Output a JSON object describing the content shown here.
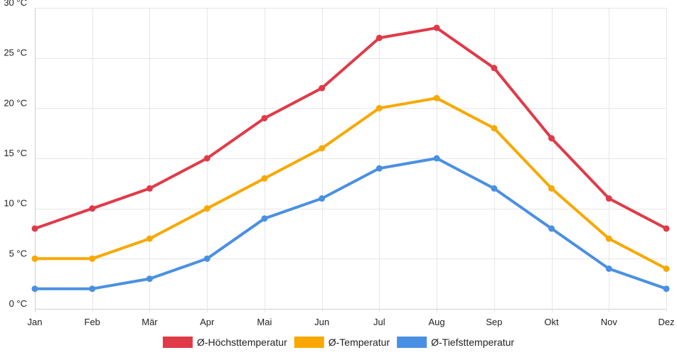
{
  "chart_data": {
    "type": "line",
    "categories": [
      "Jan",
      "Feb",
      "Mär",
      "Apr",
      "Mai",
      "Jun",
      "Jul",
      "Aug",
      "Sep",
      "Okt",
      "Nov",
      "Dez"
    ],
    "ylim": [
      0,
      30
    ],
    "y_ticks": [
      0,
      5,
      10,
      15,
      20,
      25,
      30
    ],
    "y_tick_labels": [
      "0 °C",
      "5 °C",
      "10 °C",
      "15 °C",
      "20 °C",
      "25 °C",
      "30 °C"
    ],
    "title": "",
    "xlabel": "",
    "ylabel": "",
    "grid": true,
    "legend_position": "bottom-center",
    "series": [
      {
        "name": "Ø-Höchsttemperatur",
        "color": "#e03a48",
        "values": [
          8,
          10,
          12,
          15,
          19,
          22,
          27,
          28,
          24,
          17,
          11,
          8
        ]
      },
      {
        "name": "Ø-Temperatur",
        "color": "#f8a800",
        "values": [
          5,
          5,
          7,
          10,
          13,
          16,
          20,
          21,
          18,
          12,
          7,
          4
        ]
      },
      {
        "name": "Ø-Tiefsttemperatur",
        "color": "#4a90e2",
        "values": [
          2,
          2,
          3,
          5,
          9,
          11,
          14,
          15,
          12,
          8,
          4,
          2
        ]
      }
    ]
  }
}
